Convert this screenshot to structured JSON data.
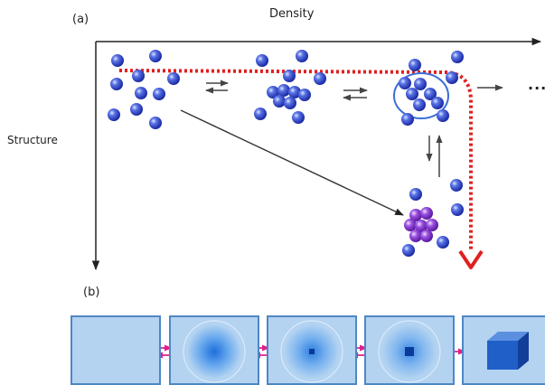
{
  "panel_a": {
    "label": "(a)",
    "x_axis_label": "Density",
    "y_axis_label": "Structure",
    "ellipsis": "..."
  },
  "panel_b": {
    "label": "(b)"
  },
  "colors": {
    "sphere_blue": "#2a44c8",
    "sphere_purple": "#7a2ec4",
    "pathway_red": "#e02020",
    "panel_fill": "#b3d3f1",
    "panel_border": "#4f87c4",
    "cube_blue": "#1f5fc8",
    "exchange_arrow": "#e0208a"
  }
}
